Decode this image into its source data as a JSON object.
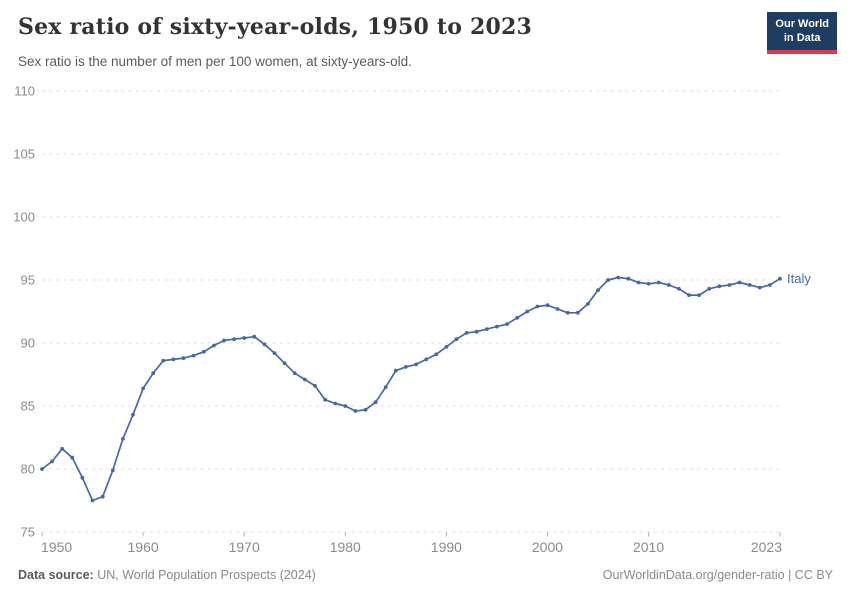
{
  "header": {
    "title": "Sex ratio of sixty-year-olds, 1950 to 2023",
    "subtitle": "Sex ratio is the number of men per 100 women, at sixty-years-old.",
    "logo": {
      "line1": "Our World",
      "line2": "in Data"
    }
  },
  "footer": {
    "source_label": "Data source:",
    "source_text": " UN, World Population Prospects (2024)",
    "link_text": "OurWorldinData.org/gender-ratio | CC BY"
  },
  "colors": {
    "line": "#4868a4",
    "grid": "#dddddd",
    "axis_text": "#8b8b8b",
    "tick": "#b0b0b0",
    "logo_bg": "#1d3d63",
    "logo_stripe": "#d93b4b"
  },
  "chart_data": {
    "type": "line",
    "title": "Sex ratio of sixty-year-olds, 1950 to 2023",
    "subtitle": "Sex ratio is the number of men per 100 women, at sixty-years-old.",
    "xlabel": "",
    "ylabel": "",
    "xlim": [
      1950,
      2023
    ],
    "ylim": [
      75,
      110
    ],
    "xticks": [
      1950,
      1960,
      1970,
      1980,
      1990,
      2000,
      2010,
      2023
    ],
    "yticks": [
      75,
      80,
      85,
      90,
      95,
      100,
      105,
      110
    ],
    "grid": "horizontal-dashed",
    "legend_position": "end-of-line-label",
    "series": [
      {
        "name": "Italy",
        "color": "#4868a4",
        "x": [
          1950,
          1951,
          1952,
          1953,
          1954,
          1955,
          1956,
          1957,
          1958,
          1959,
          1960,
          1961,
          1962,
          1963,
          1964,
          1965,
          1966,
          1967,
          1968,
          1969,
          1970,
          1971,
          1972,
          1973,
          1974,
          1975,
          1976,
          1977,
          1978,
          1979,
          1980,
          1981,
          1982,
          1983,
          1984,
          1985,
          1986,
          1987,
          1988,
          1989,
          1990,
          1991,
          1992,
          1993,
          1994,
          1995,
          1996,
          1997,
          1998,
          1999,
          2000,
          2001,
          2002,
          2003,
          2004,
          2005,
          2006,
          2007,
          2008,
          2009,
          2010,
          2011,
          2012,
          2013,
          2014,
          2015,
          2016,
          2017,
          2018,
          2019,
          2020,
          2021,
          2022,
          2023
        ],
        "values": [
          80.0,
          80.6,
          81.6,
          80.9,
          79.3,
          77.5,
          77.8,
          79.9,
          82.4,
          84.3,
          86.4,
          87.6,
          88.6,
          88.7,
          88.8,
          89.0,
          89.3,
          89.8,
          90.2,
          90.3,
          90.4,
          90.5,
          89.9,
          89.2,
          88.4,
          87.6,
          87.1,
          86.6,
          85.5,
          85.2,
          85.0,
          84.6,
          84.7,
          85.3,
          86.5,
          87.8,
          88.1,
          88.3,
          88.7,
          89.1,
          89.7,
          90.3,
          90.8,
          90.9,
          91.1,
          91.3,
          91.5,
          92.0,
          92.5,
          92.9,
          93.0,
          92.7,
          92.4,
          92.4,
          93.1,
          94.2,
          95.0,
          95.2,
          95.1,
          94.8,
          94.7,
          94.8,
          94.6,
          94.3,
          93.8,
          93.8,
          94.3,
          94.5,
          94.6,
          94.8,
          94.6,
          94.4,
          94.6,
          95.1
        ]
      }
    ]
  }
}
